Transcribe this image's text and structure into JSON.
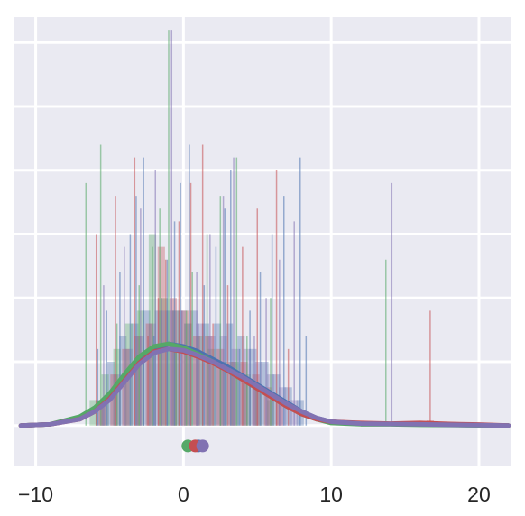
{
  "chart_data": {
    "type": "line",
    "title": "",
    "xlabel": "",
    "ylabel": "",
    "xlim": [
      -11.5,
      22.2
    ],
    "ylim": [
      -0.032,
      0.32
    ],
    "x_ticks": [
      -10,
      0,
      10,
      20
    ],
    "x_tick_labels": [
      "−10",
      "0",
      "10",
      "20"
    ],
    "y_tick_values": [
      0.0,
      0.05,
      0.1,
      0.15,
      0.2,
      0.25,
      0.3
    ],
    "grid": true,
    "legend": "none",
    "colors": {
      "background": "#EAEAF2",
      "grid": "#FFFFFF",
      "blue": "#4C72B0",
      "green": "#55A868",
      "red": "#C44E52",
      "purple": "#8172B2"
    },
    "series": [
      {
        "color": "#4C72B0",
        "kde": {
          "x": [
            -11,
            -9,
            -7,
            -6,
            -5,
            -4,
            -3,
            -2,
            -1,
            0,
            1,
            2,
            3,
            4,
            5,
            6,
            7,
            8,
            9,
            10,
            12,
            14,
            16,
            18,
            20,
            22
          ],
          "y": [
            0.0,
            0.001,
            0.006,
            0.012,
            0.022,
            0.036,
            0.05,
            0.06,
            0.064,
            0.062,
            0.058,
            0.052,
            0.046,
            0.039,
            0.032,
            0.025,
            0.018,
            0.011,
            0.006,
            0.003,
            0.0015,
            0.0012,
            0.001,
            0.0006,
            0.0003,
            0.0
          ]
        },
        "mean_marker": 1.0,
        "rug_x": [
          -5.8,
          -5.2,
          -4.3,
          -3.6,
          -3.2,
          -2.7,
          -2.0,
          -1.5,
          -1.1,
          -0.6,
          -0.2,
          0.4,
          1.0,
          1.4,
          2.2,
          2.8,
          3.2,
          3.8,
          4.5,
          5.2,
          6.0,
          6.8,
          7.9,
          8.3
        ],
        "hist_x": [
          -5.7,
          -4.9,
          -4.1,
          -3.3,
          -2.5,
          -1.7,
          -0.9,
          -0.1,
          0.7,
          1.5,
          2.3,
          3.1,
          3.9,
          4.7,
          5.5,
          6.3,
          7.1,
          7.9
        ],
        "hist_h": [
          0.02,
          0.05,
          0.07,
          0.08,
          0.09,
          0.09,
          0.09,
          0.09,
          0.09,
          0.08,
          0.08,
          0.08,
          0.07,
          0.06,
          0.05,
          0.04,
          0.03,
          0.02
        ]
      },
      {
        "color": "#55A868",
        "kde": {
          "x": [
            -11,
            -9,
            -7,
            -6,
            -5,
            -4,
            -3,
            -2,
            -1,
            0,
            1,
            2,
            3,
            4,
            5,
            6,
            7,
            8,
            9,
            10,
            12,
            14,
            16,
            18,
            20,
            22
          ],
          "y": [
            0.0,
            0.001,
            0.007,
            0.014,
            0.025,
            0.04,
            0.054,
            0.062,
            0.064,
            0.061,
            0.056,
            0.05,
            0.043,
            0.036,
            0.029,
            0.022,
            0.015,
            0.009,
            0.005,
            0.002,
            0.001,
            0.001,
            0.0006,
            0.0004,
            0.0002,
            0.0
          ]
        },
        "mean_marker": 0.3,
        "rug_x": [
          -6.6,
          -5.6,
          -4.5,
          -3.0,
          -2.1,
          -1.6,
          -1.0,
          -0.5,
          0.2,
          0.6,
          1.6,
          2.5,
          3.6,
          4.3,
          5.9,
          13.7
        ],
        "hist_x": [
          -6.1,
          -5.3,
          -4.5,
          -3.7,
          -2.9,
          -2.1,
          -1.3,
          -0.5,
          0.3,
          1.1,
          1.9,
          2.7,
          3.5,
          4.3,
          5.1,
          5.9
        ],
        "hist_h": [
          0.02,
          0.04,
          0.06,
          0.08,
          0.09,
          0.15,
          0.1,
          0.09,
          0.08,
          0.07,
          0.06,
          0.05,
          0.05,
          0.04,
          0.03,
          0.02
        ]
      },
      {
        "color": "#C44E52",
        "kde": {
          "x": [
            -11,
            -9,
            -7,
            -6,
            -5,
            -4,
            -3,
            -2,
            -1,
            0,
            1,
            2,
            3,
            4,
            5,
            6,
            7,
            8,
            9,
            10,
            12,
            14,
            16,
            18,
            20,
            22
          ],
          "y": [
            0.0,
            0.001,
            0.005,
            0.011,
            0.021,
            0.035,
            0.049,
            0.058,
            0.06,
            0.058,
            0.054,
            0.049,
            0.043,
            0.036,
            0.029,
            0.022,
            0.015,
            0.009,
            0.005,
            0.003,
            0.002,
            0.0015,
            0.002,
            0.0012,
            0.0008,
            0.0
          ]
        },
        "mean_marker": 0.8,
        "rug_x": [
          -5.9,
          -4.6,
          -3.3,
          -2.4,
          -1.7,
          -1.2,
          -0.3,
          0.5,
          1.3,
          2.0,
          3.0,
          4.0,
          5.0,
          6.3,
          7.1,
          16.7
        ],
        "hist_x": [
          -5.5,
          -4.7,
          -3.9,
          -3.1,
          -2.3,
          -1.5,
          -0.7,
          0.1,
          0.9,
          1.7,
          2.5,
          3.3,
          4.1,
          4.9,
          5.7,
          6.5,
          16.7
        ],
        "hist_h": [
          0.02,
          0.04,
          0.06,
          0.07,
          0.08,
          0.14,
          0.1,
          0.09,
          0.07,
          0.07,
          0.06,
          0.05,
          0.05,
          0.04,
          0.03,
          0.02,
          0.004
        ]
      },
      {
        "color": "#8172B2",
        "kde": {
          "x": [
            -11,
            -9,
            -7,
            -6,
            -5,
            -4,
            -3,
            -2,
            -1,
            0,
            1,
            2,
            3,
            4,
            5,
            6,
            7,
            8,
            9,
            10,
            12,
            14,
            16,
            18,
            20,
            22
          ],
          "y": [
            0.0,
            0.001,
            0.005,
            0.011,
            0.02,
            0.034,
            0.048,
            0.057,
            0.06,
            0.059,
            0.055,
            0.05,
            0.044,
            0.038,
            0.031,
            0.024,
            0.017,
            0.011,
            0.006,
            0.003,
            0.0015,
            0.0012,
            0.001,
            0.0006,
            0.0003,
            0.0
          ]
        },
        "mean_marker": 1.3,
        "rug_x": [
          -5.4,
          -4.0,
          -2.9,
          -1.9,
          -0.8,
          -0.1,
          0.9,
          1.8,
          2.7,
          3.4,
          4.8,
          5.6,
          6.5,
          7.5,
          14.1
        ],
        "hist_x": [
          -5.3,
          -4.5,
          -3.7,
          -2.9,
          -2.1,
          -1.3,
          -0.5,
          0.3,
          1.1,
          1.9,
          2.7,
          3.5,
          4.3,
          5.1,
          5.9,
          6.7,
          7.5
        ],
        "hist_h": [
          0.02,
          0.04,
          0.06,
          0.07,
          0.08,
          0.09,
          0.09,
          0.08,
          0.08,
          0.07,
          0.07,
          0.06,
          0.06,
          0.05,
          0.04,
          0.03,
          0.02
        ]
      }
    ]
  }
}
